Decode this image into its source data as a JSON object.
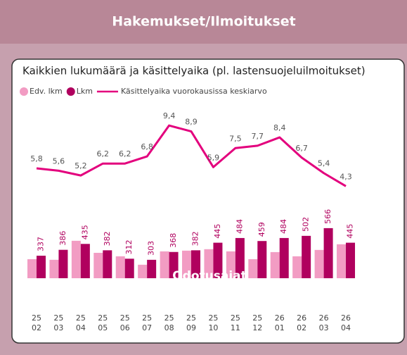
{
  "header": {
    "title": "Hakemukset/Ilmoitukset"
  },
  "chart_data": {
    "type": "bar-line",
    "title": "Kaikkien lukumäärä ja käsittelyaika (pl. lastensuojeluilmoitukset)",
    "annotation": "Odotusajat",
    "categories": [
      [
        "25",
        "02"
      ],
      [
        "25",
        "03"
      ],
      [
        "25",
        "04"
      ],
      [
        "25",
        "05"
      ],
      [
        "25",
        "06"
      ],
      [
        "25",
        "07"
      ],
      [
        "25",
        "08"
      ],
      [
        "25",
        "09"
      ],
      [
        "25",
        "10"
      ],
      [
        "25",
        "11"
      ],
      [
        "25",
        "12"
      ],
      [
        "26",
        "01"
      ],
      [
        "26",
        "02"
      ],
      [
        "26",
        "03"
      ],
      [
        "26",
        "04"
      ]
    ],
    "ylim": [
      150,
      700
    ],
    "y2lim": [
      0,
      10
    ],
    "series": [
      {
        "name": "Edv. lkm",
        "color": "#f29cc3",
        "values": [
          308,
          303,
          461,
          361,
          332,
          262,
          373,
          379,
          391,
          373,
          308,
          367,
          332,
          385,
          432
        ]
      },
      {
        "name": "Lkm",
        "color": "#b0005e",
        "values": [
          337,
          386,
          435,
          382,
          312,
          303,
          368,
          382,
          445,
          484,
          459,
          484,
          502,
          566,
          445
        ]
      },
      {
        "name": "Käsittelyaika vuorokausissa keskiarvo",
        "color": "#e3007d",
        "axis": "y2",
        "values": [
          5.8,
          5.6,
          5.2,
          6.2,
          6.2,
          6.8,
          9.4,
          8.9,
          5.9,
          7.5,
          7.7,
          8.4,
          6.7,
          5.4,
          4.3
        ],
        "value_labels": [
          "5,8",
          "5,6",
          "5,2",
          "6,2",
          "6,2",
          "6,8",
          "9,4",
          "8,9",
          "5,9",
          "7,5",
          "7,7",
          "8,4",
          "6,7",
          "5,4",
          "4,3"
        ]
      }
    ]
  }
}
